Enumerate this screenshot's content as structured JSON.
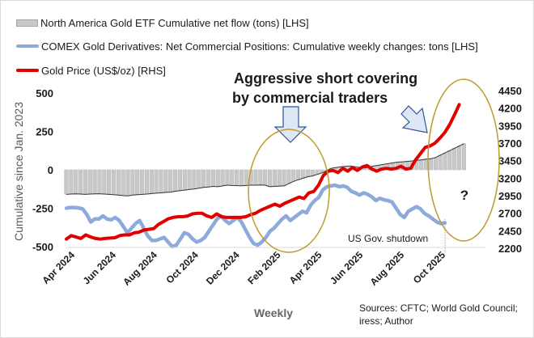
{
  "chart_data": {
    "type": "line",
    "title": "",
    "xlabel": "Weekly",
    "ylabel": "Cumulative since Jan. 2023",
    "left_ylim": [
      -500,
      500
    ],
    "right_ylim": [
      2200,
      4450
    ],
    "left_ticks": [
      "500",
      "250",
      "0",
      "-250",
      "-500"
    ],
    "right_ticks": [
      "4450",
      "4200",
      "3950",
      "3700",
      "3450",
      "3200",
      "2950",
      "2700",
      "2450",
      "2200"
    ],
    "x_tick_labels": [
      "Apr 2024",
      "Jun 2024",
      "Aug 2024",
      "Oct 2024",
      "Dec 2024",
      "Feb 2025",
      "Apr 2025",
      "Jun 2025",
      "Aug 2025",
      "Oct 2025"
    ],
    "x_tick_weeks": [
      0.5,
      9.2,
      17.9,
      26.6,
      35.3,
      44.0,
      52.7,
      61.4,
      70.1,
      78.8
    ],
    "grid": false,
    "legend_position": "top-left",
    "series": [
      {
        "name": "North America Gold ETF Cumulative net flow (tons) [LHS]",
        "type": "bar",
        "axis": "left",
        "color": "#c8c8c8",
        "values": [
          -160,
          -158,
          -157,
          -158,
          -160,
          -158,
          -157,
          -156,
          -158,
          -160,
          -162,
          -165,
          -168,
          -170,
          -165,
          -162,
          -160,
          -158,
          -155,
          -152,
          -150,
          -147,
          -145,
          -140,
          -135,
          -132,
          -128,
          -125,
          -120,
          -115,
          -112,
          -108,
          -110,
          -105,
          -100,
          -102,
          -103,
          -104,
          -102,
          -100,
          -100,
          -99,
          -100,
          -110,
          -108,
          -106,
          -105,
          -90,
          -75,
          -65,
          -55,
          -45,
          -40,
          -30,
          -20,
          -5,
          10,
          15,
          20,
          22,
          25,
          20,
          15,
          12,
          18,
          25,
          30,
          35,
          40,
          45,
          50,
          52,
          55,
          58,
          62,
          65,
          70,
          72,
          80,
          95,
          110,
          125,
          140,
          155,
          170
        ]
      },
      {
        "name": "COMEX Gold Derivatives: Net Commercial Positions: Cumulative weekly changes: tons [LHS]",
        "type": "line",
        "axis": "left",
        "color": "#8eaadb",
        "values": [
          -250,
          -245,
          -245,
          -248,
          -255,
          -290,
          -340,
          -320,
          -320,
          -300,
          -320,
          -325,
          -310,
          -330,
          -370,
          -410,
          -380,
          -350,
          -330,
          -380,
          -430,
          -460,
          -460,
          -450,
          -440,
          -470,
          -500,
          -490,
          -450,
          -410,
          -420,
          -450,
          -470,
          -460,
          -440,
          -400,
          -360,
          -320,
          -300,
          -330,
          -350,
          -330,
          -310,
          -340,
          -390,
          -440,
          -480,
          -490,
          -470,
          -440,
          -400,
          -380,
          -350,
          -320,
          -300,
          -330,
          -310,
          -290,
          -270,
          -280,
          -230,
          -200,
          -180,
          -130,
          -110,
          -105,
          -100,
          -110,
          -105,
          -115,
          -140,
          -150,
          -165,
          -150,
          -160,
          -175,
          -200,
          -185,
          -195,
          -200,
          -210,
          -250,
          -290,
          -310,
          -270,
          -255,
          -240,
          -255,
          -285,
          -300,
          -320,
          -340,
          -350,
          -345
        ]
      },
      {
        "name": "Gold Price (US$/oz) [RHS]",
        "type": "line",
        "axis": "right",
        "color": "#e00000",
        "values": [
          2330,
          2380,
          2360,
          2340,
          2390,
          2360,
          2340,
          2330,
          2340,
          2345,
          2350,
          2380,
          2390,
          2390,
          2420,
          2430,
          2460,
          2470,
          2480,
          2540,
          2580,
          2620,
          2640,
          2650,
          2650,
          2660,
          2690,
          2700,
          2700,
          2660,
          2640,
          2690,
          2650,
          2640,
          2640,
          2640,
          2640,
          2650,
          2680,
          2700,
          2740,
          2770,
          2800,
          2830,
          2800,
          2840,
          2870,
          2900,
          2930,
          2910,
          2990,
          3010,
          3100,
          3240,
          3300,
          3310,
          3280,
          3340,
          3300,
          3350,
          3310,
          3360,
          3380,
          3330,
          3300,
          3330,
          3340,
          3330,
          3340,
          3370,
          3330,
          3340,
          3460,
          3550,
          3640,
          3660,
          3700,
          3770,
          3850,
          3960,
          4100,
          4250
        ]
      }
    ],
    "annotations": [
      "Aggressive short covering",
      "by commercial traders",
      "US Gov. shutdown",
      "?"
    ]
  },
  "legend": [
    {
      "label": "North America Gold ETF Cumulative net flow (tons) [LHS]",
      "color": "#c8c8c8"
    },
    {
      "label": "COMEX Gold Derivatives: Net Commercial Positions: Cumulative weekly changes: tons [LHS]",
      "color": "#8eaadb"
    },
    {
      "label": "Gold Price (US$/oz) [RHS]",
      "color": "#e00000"
    }
  ],
  "annotation_text": {
    "line1": "Aggressive short covering",
    "line2": "by commercial traders",
    "shutdown": "US Gov. shutdown",
    "question": "?"
  },
  "source": {
    "line1": "Sources: CFTC;  World Gold Council;",
    "line2": "iress; Author"
  },
  "ellipse_color": "#c09a2e",
  "arrow_fill": "#dde7f5",
  "arrow_stroke": "#2f5597"
}
